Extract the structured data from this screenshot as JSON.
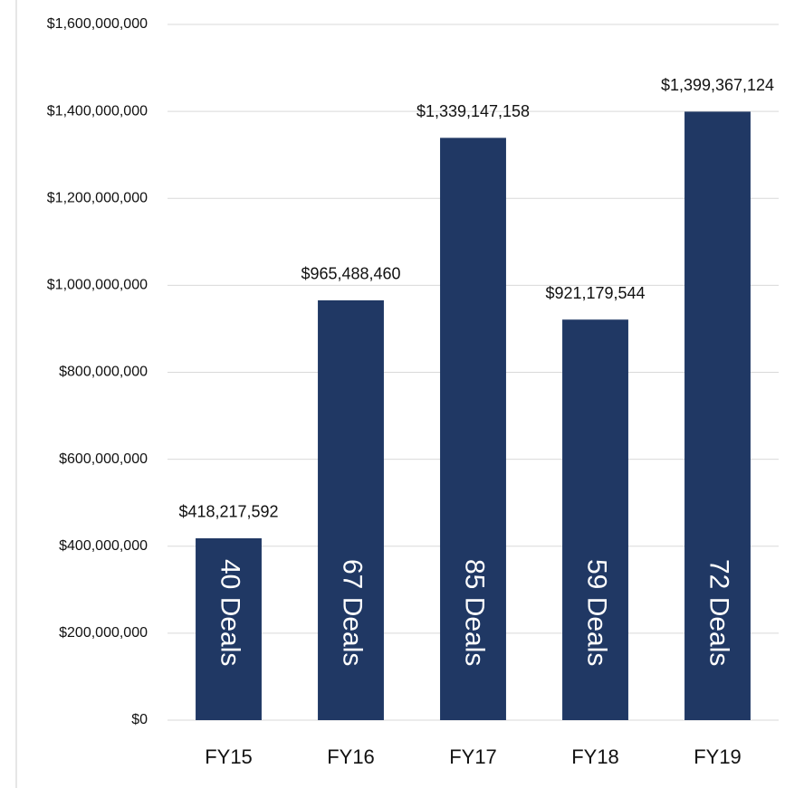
{
  "chart_data": {
    "type": "bar",
    "categories": [
      "FY15",
      "FY16",
      "FY17",
      "FY18",
      "FY19"
    ],
    "values": [
      418217592,
      965488460,
      1339147158,
      921179544,
      1399367124
    ],
    "value_labels": [
      "$418,217,592",
      "$965,488,460",
      "$1,339,147,158",
      "$921,179,544",
      "$1,399,367,124"
    ],
    "deal_labels": [
      "40 Deals",
      "67 Deals",
      "85 Deals",
      "59 Deals",
      "72 Deals"
    ],
    "color": "#203864",
    "ylim": [
      0,
      1600000000
    ],
    "yticks": [
      {
        "value": 0,
        "label": "$0"
      },
      {
        "value": 200000000,
        "label": "$200,000,000"
      },
      {
        "value": 400000000,
        "label": "$400,000,000"
      },
      {
        "value": 600000000,
        "label": "$600,000,000"
      },
      {
        "value": 800000000,
        "label": "$800,000,000"
      },
      {
        "value": 1000000000,
        "label": "$1,000,000,000"
      },
      {
        "value": 1200000000,
        "label": "$1,200,000,000"
      },
      {
        "value": 1400000000,
        "label": "$1,400,000,000"
      },
      {
        "value": 1600000000,
        "label": "$1,600,000,000"
      }
    ],
    "grid": true
  }
}
